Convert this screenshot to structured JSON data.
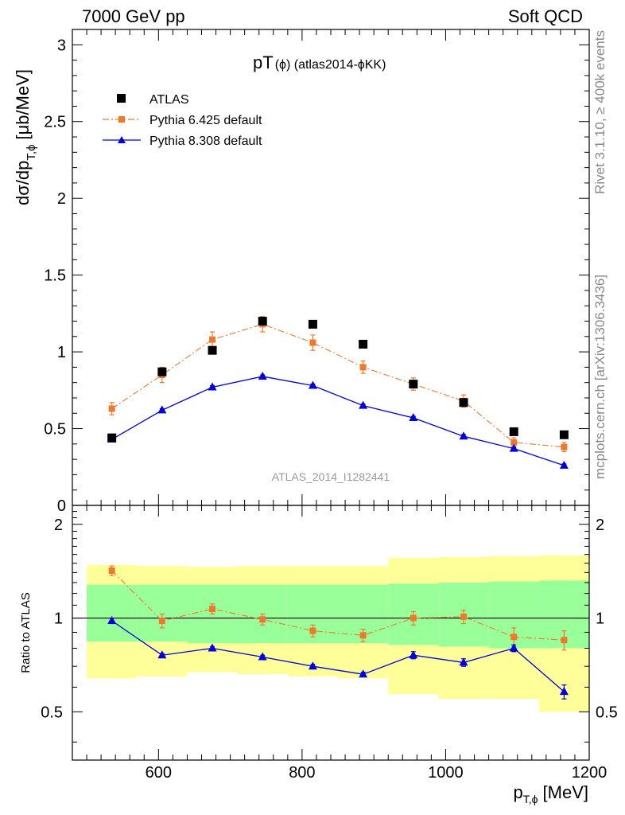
{
  "header": {
    "energy_label": "7000 GeV pp",
    "process_label": "Soft QCD"
  },
  "side_text": {
    "rivet": "Rivet 3.1.10, ≥ 400k events",
    "mcplots": "mcplots.cern.ch [arXiv:1306.3436]"
  },
  "analysis_id": "ATLAS_2014_I1282441",
  "colors": {
    "data": "#000000",
    "py6": "#f0782d",
    "py8": "#0000dd",
    "band_outer": "#ffff99",
    "band_inner": "#99ff99"
  },
  "chart_data": [
    {
      "type": "scatter",
      "title": "pT(ϕ) (atlas2014-ϕKK)",
      "title_main": "pT",
      "title_sub": "(ϕ) (atlas2014-ϕKK)",
      "xlabel": "p_{T,ϕ} [MeV]",
      "ylabel": "dσ/dp_{T,ϕ} [μb/MeV]",
      "ylabel_main": "dσ/dp",
      "ylabel_sub": "T,ϕ",
      "ylabel_unit": "[μb/MeV]",
      "xlim": [
        480,
        1200
      ],
      "ylim": [
        0,
        3.1
      ],
      "yticks": [
        0,
        0.5,
        1,
        1.5,
        2,
        2.5,
        3
      ],
      "ytick_labels": [
        "0",
        "0.5",
        "1",
        "1.5",
        "2",
        "2.5",
        "3"
      ],
      "legend_position": "top-left",
      "x": [
        535,
        605,
        675,
        745,
        815,
        885,
        955,
        1025,
        1095,
        1165
      ],
      "series": [
        {
          "name": "ATLAS",
          "style": "data",
          "values": [
            0.44,
            0.87,
            1.01,
            1.2,
            1.18,
            1.05,
            0.79,
            0.67,
            0.48,
            0.46
          ]
        },
        {
          "name": "Pythia 6.425 default",
          "style": "py6",
          "values": [
            0.63,
            0.85,
            1.08,
            1.18,
            1.06,
            0.9,
            0.79,
            0.68,
            0.41,
            0.38
          ],
          "errors": [
            0.04,
            0.05,
            0.05,
            0.05,
            0.05,
            0.04,
            0.04,
            0.04,
            0.03,
            0.03
          ]
        },
        {
          "name": "Pythia 8.308 default",
          "style": "py8",
          "values": [
            0.43,
            0.62,
            0.77,
            0.84,
            0.78,
            0.65,
            0.57,
            0.45,
            0.37,
            0.26
          ],
          "errors": [
            0.01,
            0.01,
            0.01,
            0.01,
            0.01,
            0.01,
            0.01,
            0.01,
            0.01,
            0.01
          ]
        }
      ]
    },
    {
      "type": "line",
      "ylabel": "Ratio to ATLAS",
      "xlim": [
        480,
        1200
      ],
      "ylim": [
        0.35,
        2.3
      ],
      "yticks": [
        0.5,
        1,
        2
      ],
      "ytick_labels": [
        "0.5",
        "1",
        "2"
      ],
      "xticks": [
        600,
        800,
        1000,
        1200
      ],
      "xtick_labels": [
        "600",
        "800",
        "1000",
        "1200"
      ],
      "x": [
        535,
        605,
        675,
        745,
        815,
        885,
        955,
        1025,
        1095,
        1165
      ],
      "band_edges": [
        500,
        570,
        640,
        710,
        780,
        850,
        920,
        990,
        1060,
        1130,
        1200
      ],
      "band_outer_low": [
        0.64,
        0.65,
        0.67,
        0.66,
        0.65,
        0.64,
        0.57,
        0.55,
        0.55,
        0.5
      ],
      "band_outer_high": [
        1.48,
        1.47,
        1.46,
        1.47,
        1.47,
        1.47,
        1.56,
        1.57,
        1.58,
        1.59
      ],
      "band_inner_low": [
        0.84,
        0.84,
        0.83,
        0.83,
        0.83,
        0.83,
        0.82,
        0.81,
        0.8,
        0.8
      ],
      "band_inner_high": [
        1.28,
        1.28,
        1.28,
        1.28,
        1.28,
        1.28,
        1.29,
        1.3,
        1.31,
        1.32
      ],
      "series": [
        {
          "name": "Pythia 6.425 default",
          "style": "py6",
          "values": [
            1.42,
            0.98,
            1.07,
            0.99,
            0.91,
            0.88,
            1.0,
            1.01,
            0.87,
            0.85
          ],
          "errors": [
            0.05,
            0.05,
            0.04,
            0.04,
            0.04,
            0.04,
            0.05,
            0.05,
            0.06,
            0.06
          ]
        },
        {
          "name": "Pythia 8.308 default",
          "style": "py8",
          "values": [
            0.98,
            0.76,
            0.8,
            0.75,
            0.7,
            0.66,
            0.76,
            0.72,
            0.8,
            0.58
          ],
          "errors": [
            0.02,
            0.01,
            0.01,
            0.01,
            0.01,
            0.01,
            0.02,
            0.02,
            0.02,
            0.03
          ]
        }
      ]
    }
  ]
}
